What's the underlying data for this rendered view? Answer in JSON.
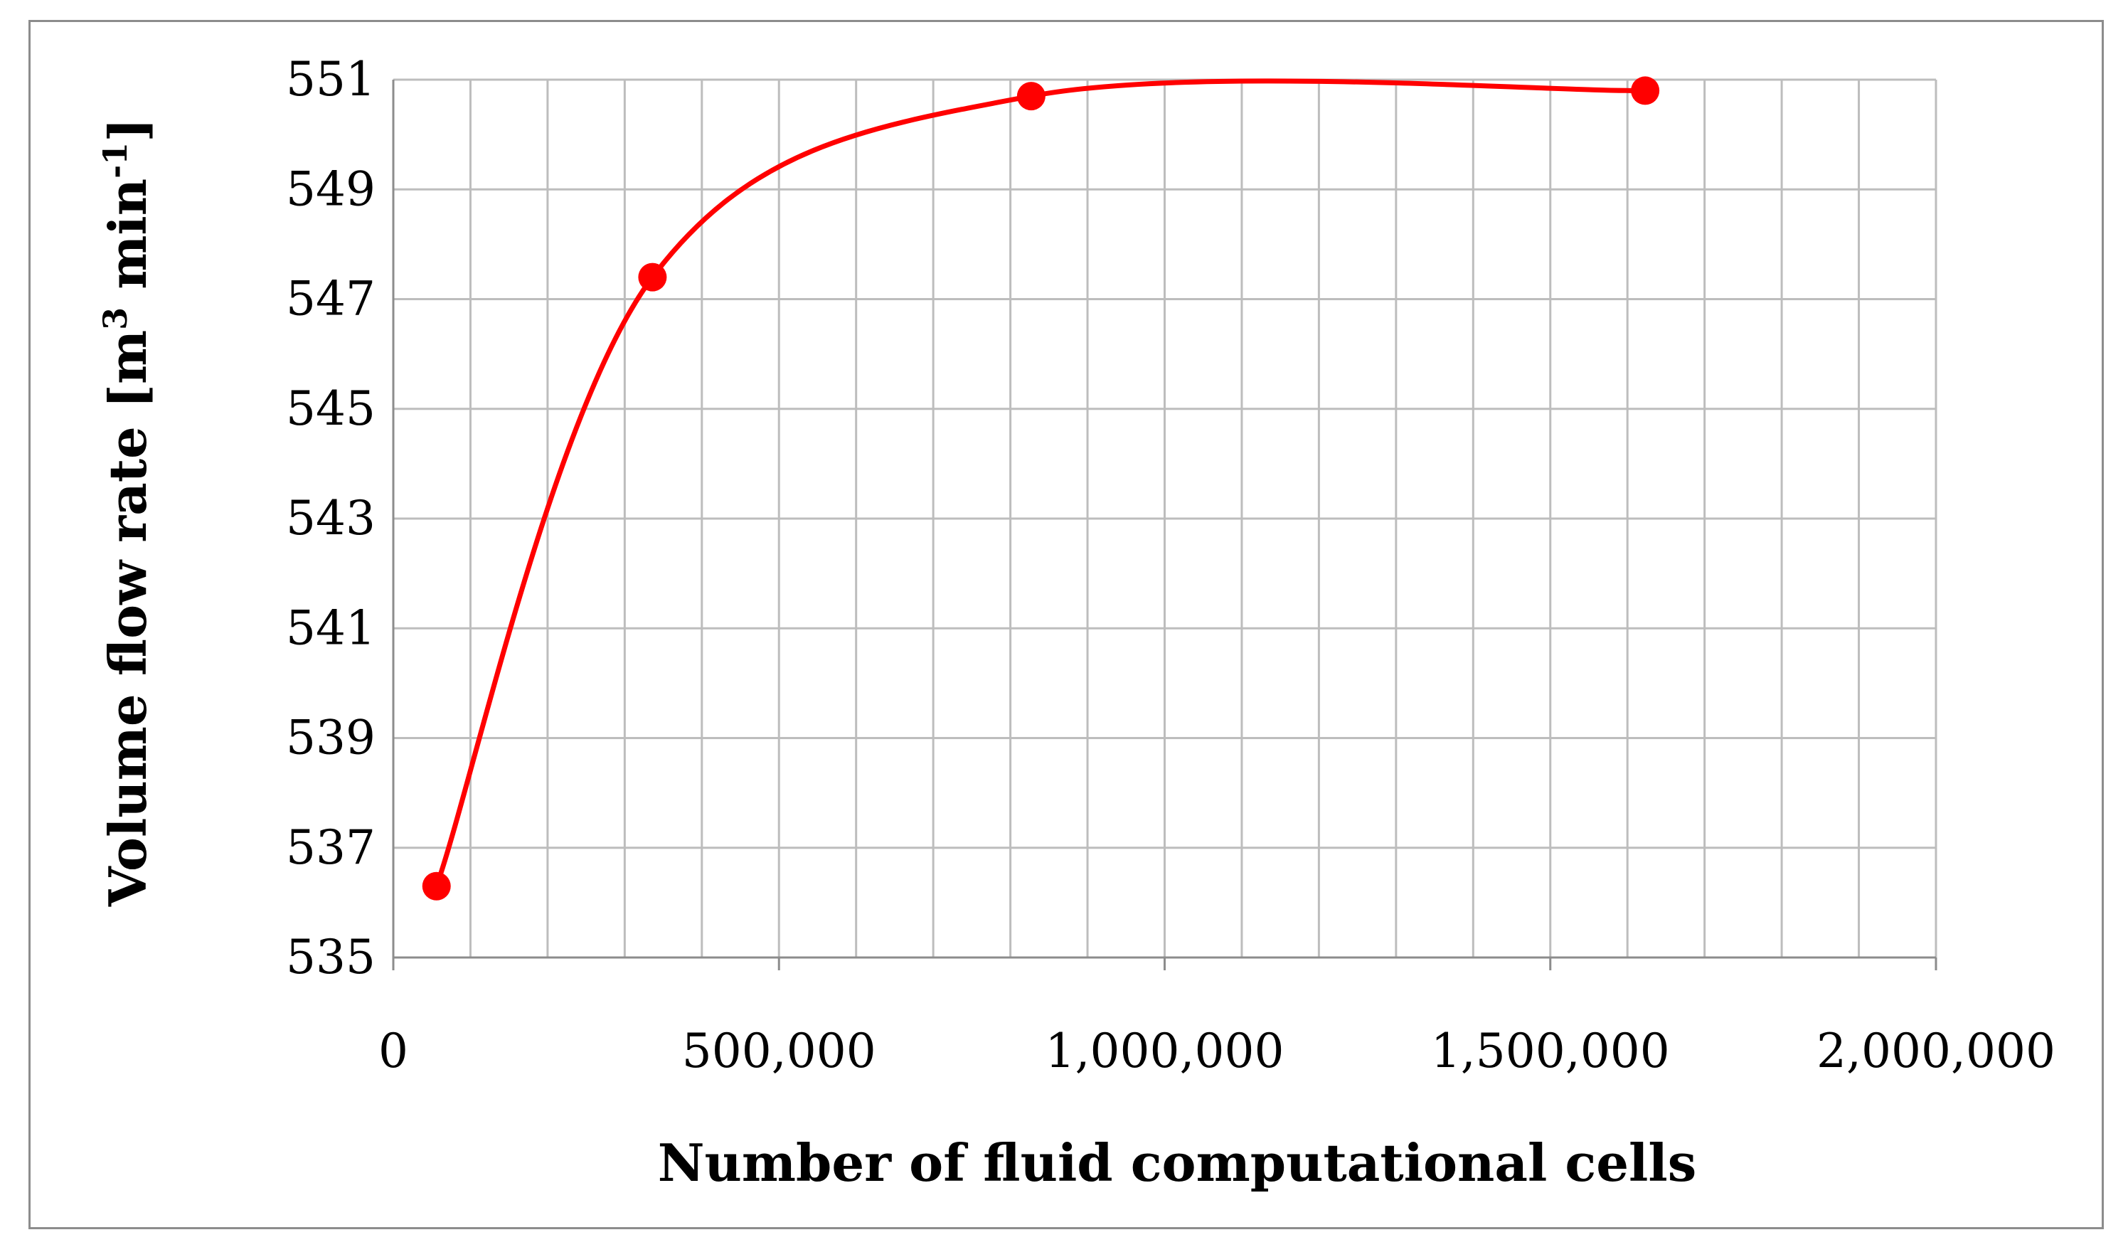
{
  "chart_data": {
    "type": "scatter",
    "title": "",
    "xlabel": "Number of fluid computational cells",
    "ylabel_main": "Volume flow rate [m",
    "ylabel_sup1": "3",
    "ylabel_mid": " min",
    "ylabel_sup2": "-1",
    "ylabel_end": "]",
    "xlim": [
      0,
      2000000
    ],
    "ylim": [
      535,
      551
    ],
    "x_ticks": [
      0,
      500000,
      1000000,
      1500000,
      2000000
    ],
    "x_tick_labels": [
      "0",
      "500,000",
      "1,000,000",
      "1,500,000",
      "2,000,000"
    ],
    "y_ticks": [
      535,
      537,
      539,
      541,
      543,
      545,
      547,
      549,
      551
    ],
    "y_tick_labels": [
      "535",
      "537",
      "539",
      "541",
      "543",
      "545",
      "547",
      "549",
      "551"
    ],
    "grid": true,
    "x_minor_step": 100000,
    "line_style": "smooth",
    "series": [
      {
        "color": "#ff0000",
        "x": [
          56000,
          336000,
          827000,
          1623000
        ],
        "y": [
          536.3,
          547.4,
          550.7,
          550.8
        ]
      }
    ]
  }
}
